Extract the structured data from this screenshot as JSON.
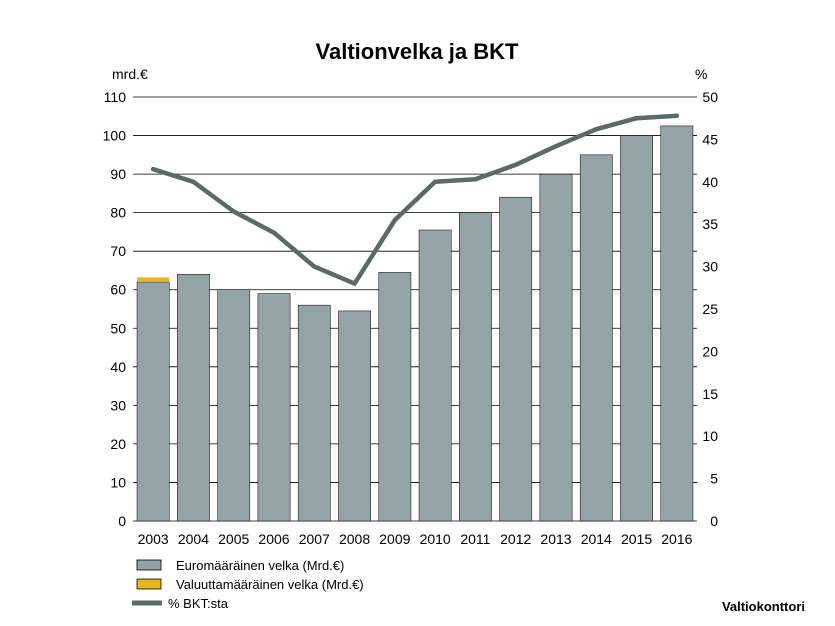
{
  "chart_data": {
    "type": "bar",
    "title": "Valtionvelka ja BKT",
    "left_unit": "mrd.€",
    "right_unit": "%",
    "categories": [
      "2003",
      "2004",
      "2005",
      "2006",
      "2007",
      "2008",
      "2009",
      "2010",
      "2011",
      "2012",
      "2013",
      "2014",
      "2015",
      "2016"
    ],
    "ylim": [
      0,
      110
    ],
    "y_ticks": [
      0,
      10,
      20,
      30,
      40,
      50,
      60,
      70,
      80,
      90,
      100,
      110
    ],
    "y2lim": [
      0,
      50
    ],
    "y2_ticks": [
      0,
      5,
      10,
      15,
      20,
      25,
      30,
      35,
      40,
      45,
      50
    ],
    "gridlines": true,
    "stacked": true,
    "series": [
      {
        "name": "Euromääräinen velka (Mrd.€)",
        "kind": "bar",
        "axis": "left",
        "color": "#93a3a6",
        "values": [
          62,
          64,
          60,
          59,
          56,
          54.5,
          64.5,
          75.5,
          80,
          84,
          90,
          95,
          100,
          102.5
        ]
      },
      {
        "name": "Valuuttamääräinen velka (Mrd.€)",
        "kind": "bar",
        "axis": "left",
        "color": "#e8b51c",
        "values": [
          1.2,
          0,
          0,
          0,
          0,
          0,
          0,
          0,
          0,
          0,
          0,
          0,
          0,
          0
        ]
      },
      {
        "name": "% BKT:sta",
        "kind": "line",
        "axis": "right",
        "color": "#5a6a69",
        "values": [
          41.5,
          40,
          36.5,
          34,
          30,
          28,
          35.5,
          40,
          40.3,
          42,
          44.2,
          46.2,
          47.5,
          47.8
        ]
      }
    ],
    "legend_position": "bottom-left",
    "source": "Valtiokonttori"
  }
}
